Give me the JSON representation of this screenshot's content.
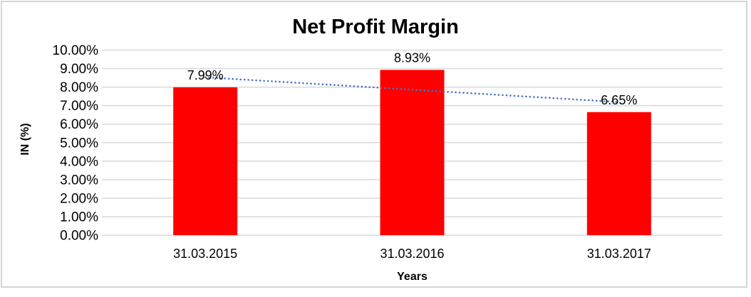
{
  "window": {
    "background_color": "#FFFFFF",
    "frame_border_color": "#D5D5D5"
  },
  "chart_data": {
    "type": "bar",
    "title": "Net Profit Margin",
    "categories": [
      "31.03.2015",
      "31.03.2016",
      "31.03.2017"
    ],
    "values": [
      7.99,
      8.93,
      6.65
    ],
    "value_labels": [
      "7.99%",
      "8.93%",
      "6.65%"
    ],
    "xlabel": "Years",
    "ylabel": "IN (%)",
    "ylim": [
      0,
      10
    ],
    "ytick_labels": [
      "0.00%",
      "1.00%",
      "2.00%",
      "3.00%",
      "4.00%",
      "5.00%",
      "6.00%",
      "7.00%",
      "8.00%",
      "9.00%",
      "10.00%"
    ],
    "grid": true,
    "legend": false,
    "bar_color": "#FF0000",
    "grid_color": "#D9D9D9",
    "text_color": "#000000",
    "trendline": {
      "type": "linear",
      "style": "dotted",
      "color": "#4472C4",
      "start_value": 8.53,
      "end_value": 7.19
    }
  }
}
